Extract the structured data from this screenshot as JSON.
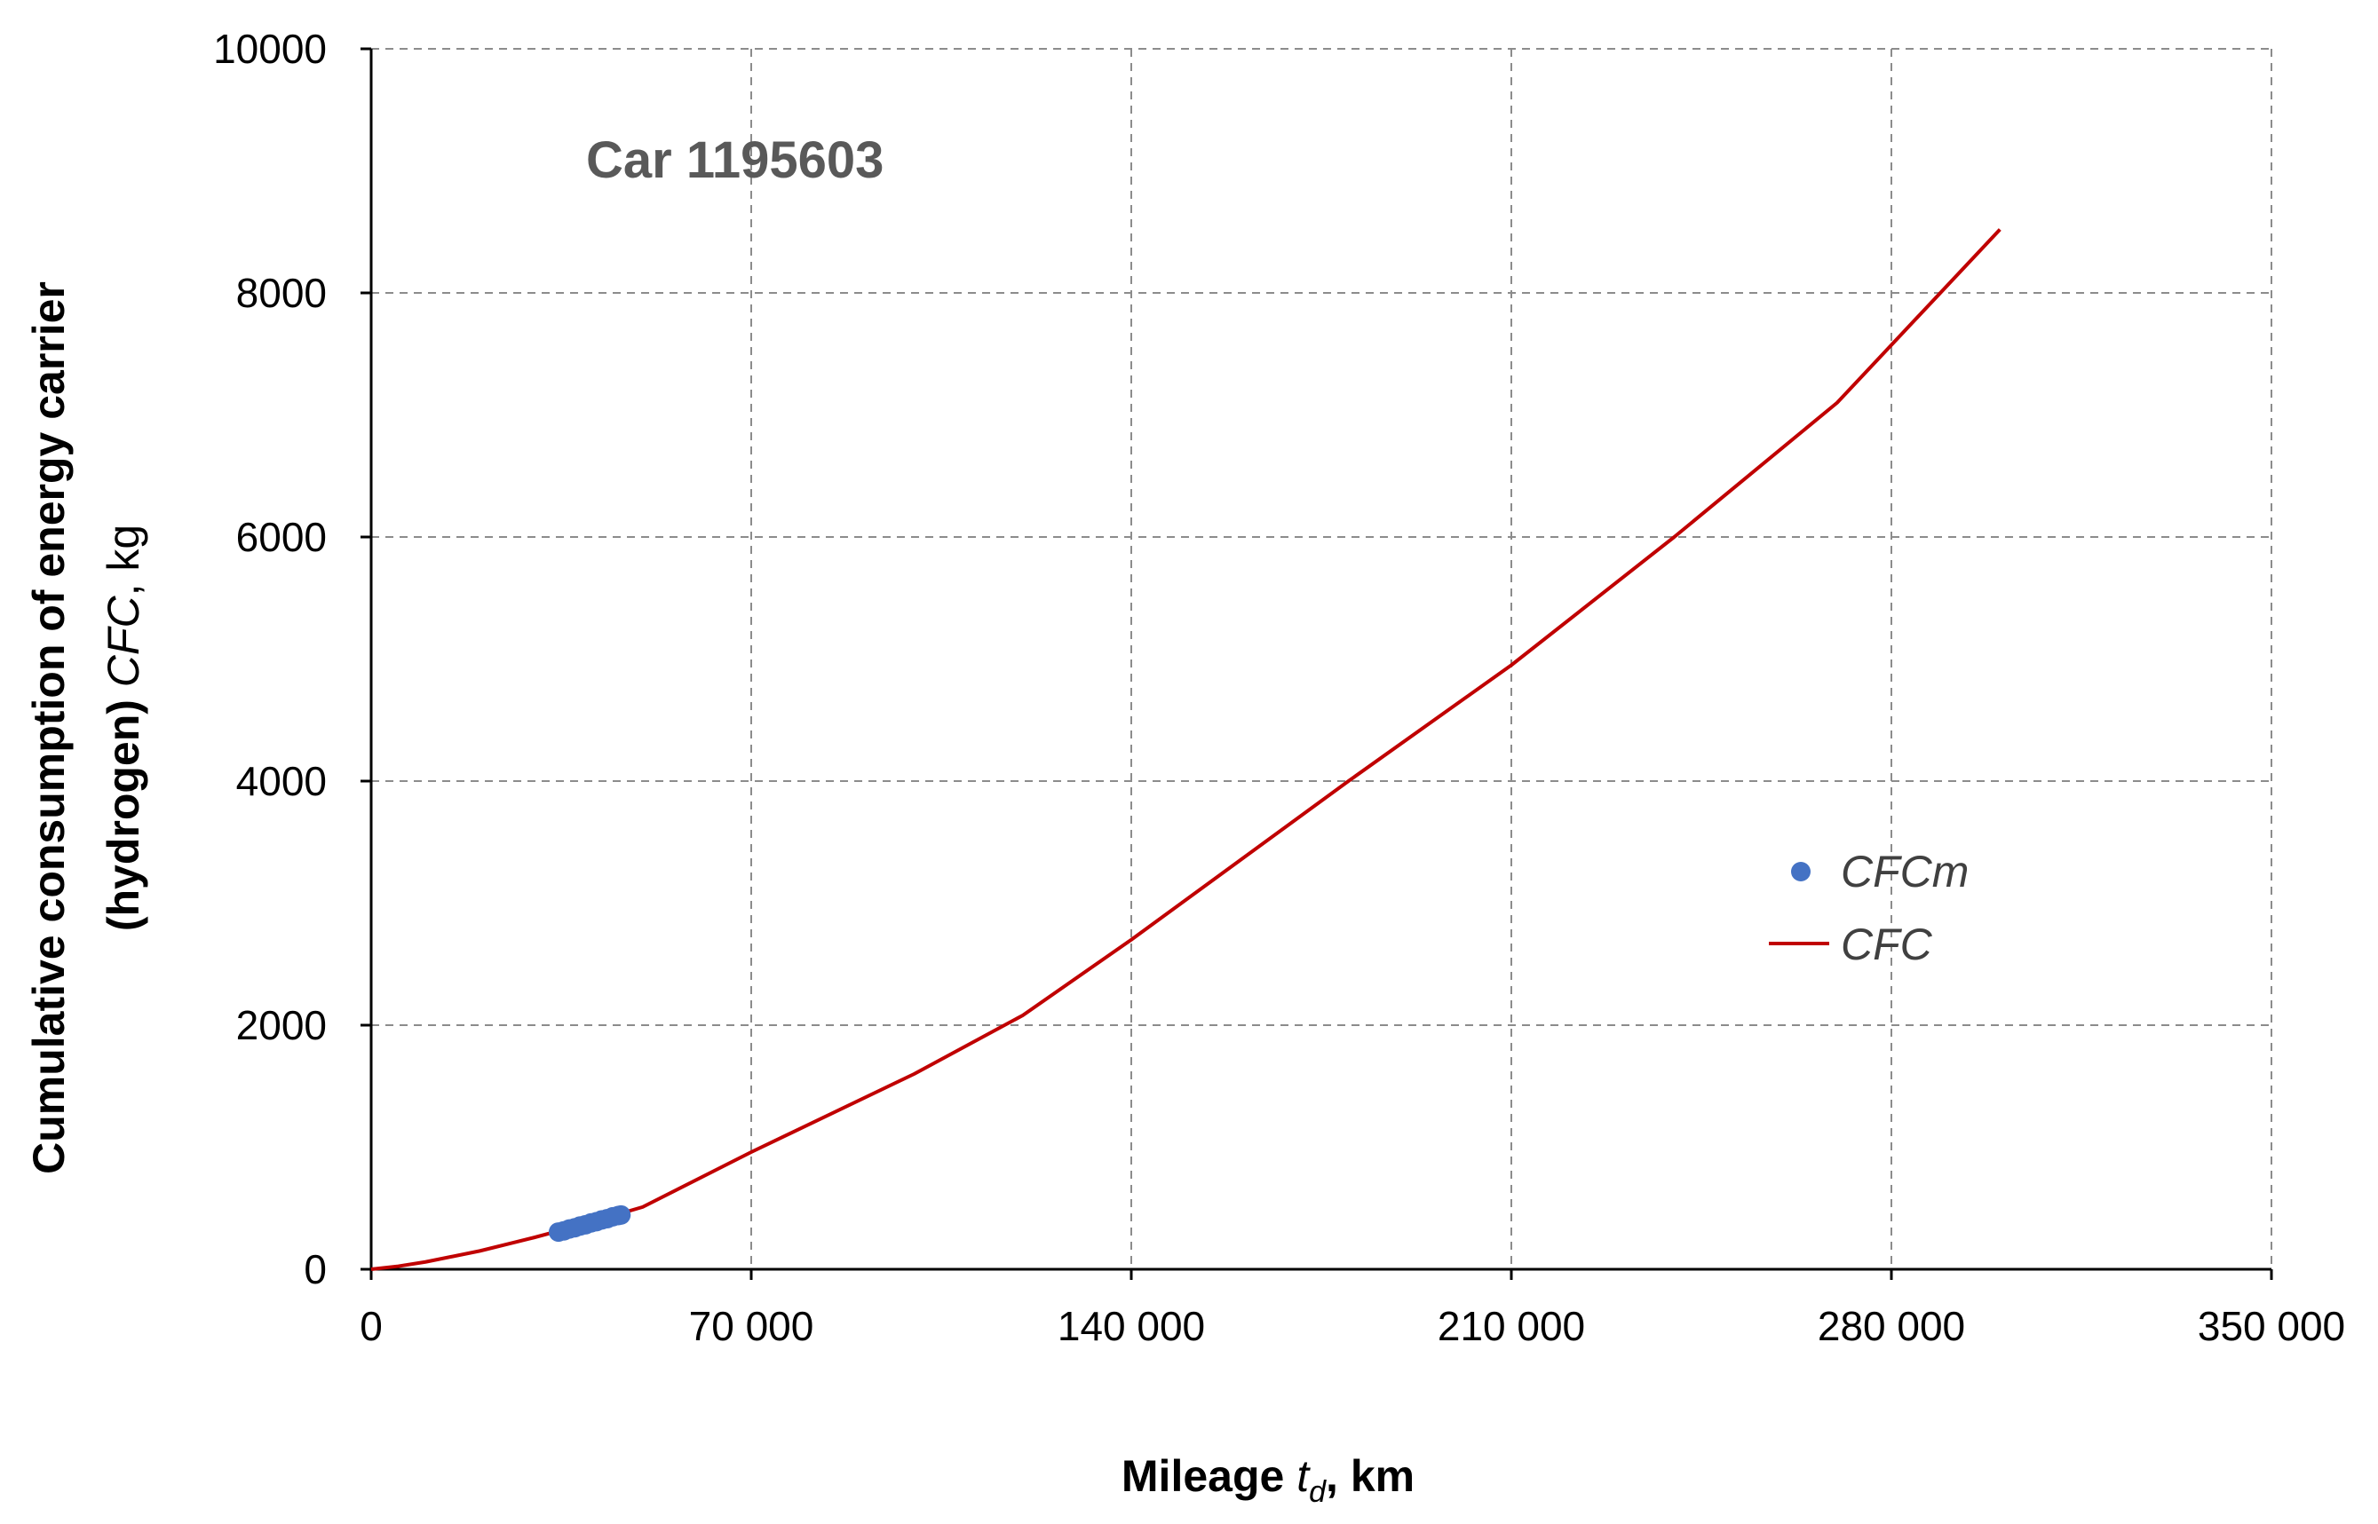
{
  "chart_data": {
    "type": "scatter",
    "annotation": "Car 1195603",
    "xlabel": {
      "main": "Mileage ",
      "var": "t",
      "sub": "d",
      "unit": ", km"
    },
    "ylabel": {
      "line1": "Cumulative consumption of energy carrier",
      "line2_prefix": "(hydrogen) ",
      "line2_var": "CFC",
      "line2_unit": ", kg"
    },
    "xlim": [
      0,
      350000
    ],
    "ylim": [
      0,
      10000
    ],
    "x_ticks": [
      0,
      70000,
      140000,
      210000,
      280000,
      350000
    ],
    "x_tick_labels": [
      "0",
      "70 000",
      "140 000",
      "210 000",
      "280 000",
      "350 000"
    ],
    "y_ticks": [
      0,
      2000,
      4000,
      6000,
      8000,
      10000
    ],
    "y_tick_labels": [
      "0",
      "2000",
      "4000",
      "6000",
      "8000",
      "10000"
    ],
    "grid": true,
    "legend_position": "right",
    "series": [
      {
        "name": "CFCm",
        "kind": "scatter",
        "color": "#4472c4",
        "x": [
          34500,
          35500,
          36500,
          37500,
          38500,
          39500,
          40500,
          41500,
          42500,
          43500,
          44500,
          45500,
          46000
        ],
        "y": [
          305,
          315,
          330,
          340,
          355,
          365,
          380,
          390,
          405,
          415,
          430,
          440,
          445
        ]
      },
      {
        "name": "CFC",
        "kind": "line",
        "color": "#c00000",
        "x": [
          0,
          5000,
          10000,
          20000,
          30000,
          40000,
          50000,
          70000,
          100000,
          120000,
          140000,
          160000,
          180000,
          210000,
          240000,
          270000,
          300000
        ],
        "y": [
          0,
          25,
          60,
          150,
          260,
          380,
          510,
          960,
          1600,
          2080,
          2700,
          3350,
          4000,
          4950,
          6000,
          7100,
          8520
        ]
      }
    ]
  }
}
